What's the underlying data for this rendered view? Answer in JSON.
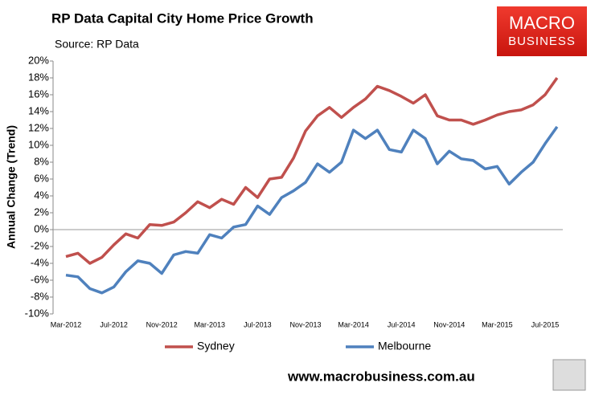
{
  "chart_data": {
    "type": "line",
    "title": "RP Data Capital City Home Price Growth",
    "subtitle": "Source: RP Data",
    "y_label": "Annual Change (Trend)",
    "categories": [
      "Mar-2012",
      null,
      null,
      null,
      "Jul-2012",
      null,
      null,
      null,
      "Nov-2012",
      null,
      null,
      null,
      "Mar-2013",
      null,
      null,
      null,
      "Jul-2013",
      null,
      null,
      null,
      "Nov-2013",
      null,
      null,
      null,
      "Mar-2014",
      null,
      null,
      null,
      "Jul-2014",
      null,
      null,
      null,
      "Nov-2014",
      null,
      null,
      null,
      "Mar-2015",
      null,
      null,
      null,
      "Jul-2015",
      null
    ],
    "series": [
      {
        "name": "Sydney",
        "color": "#c0504d",
        "values": [
          -3.2,
          -2.8,
          -4.0,
          -3.3,
          -1.8,
          -0.5,
          -1.0,
          0.6,
          0.5,
          0.9,
          2.0,
          3.3,
          2.6,
          3.6,
          3.0,
          5.0,
          3.8,
          6.0,
          6.2,
          8.5,
          11.7,
          13.5,
          14.5,
          13.3,
          14.5,
          15.5,
          17.0,
          16.5,
          15.8,
          15.0,
          16.0,
          13.5,
          13.0,
          13.0,
          12.5,
          13.0,
          13.6,
          14.0,
          14.2,
          14.8,
          16.0,
          18.0
        ]
      },
      {
        "name": "Melbourne",
        "color": "#4f81bd",
        "values": [
          -5.4,
          -5.6,
          -7.0,
          -7.5,
          -6.8,
          -5.0,
          -3.7,
          -4.0,
          -5.2,
          -3.0,
          -2.6,
          -2.8,
          -0.6,
          -1.0,
          0.3,
          0.6,
          2.8,
          1.8,
          3.8,
          4.6,
          5.6,
          7.8,
          6.8,
          8.0,
          11.8,
          10.8,
          11.8,
          9.5,
          9.2,
          11.8,
          10.8,
          7.8,
          9.3,
          8.4,
          8.2,
          7.2,
          7.5,
          5.4,
          6.8,
          8.0,
          10.2,
          12.2
        ]
      }
    ],
    "ylim": [
      -10,
      20
    ],
    "yticks": [
      {
        "value": -10,
        "label": "-10%"
      },
      {
        "value": -8,
        "label": "-8%"
      },
      {
        "value": -6,
        "label": "-6%"
      },
      {
        "value": -4,
        "label": "-4%"
      },
      {
        "value": -2,
        "label": "-2%"
      },
      {
        "value": 0,
        "label": "0%"
      },
      {
        "value": 2,
        "label": "2%"
      },
      {
        "value": 4,
        "label": "4%"
      },
      {
        "value": 6,
        "label": "6%"
      },
      {
        "value": 8,
        "label": "8%"
      },
      {
        "value": 10,
        "label": "10%"
      },
      {
        "value": 12,
        "label": "12%"
      },
      {
        "value": 14,
        "label": "14%"
      },
      {
        "value": 16,
        "label": "16%"
      },
      {
        "value": 18,
        "label": "18%"
      },
      {
        "value": 20,
        "label": "20%"
      }
    ],
    "grid": false,
    "legend": "bottom"
  },
  "branding": {
    "logo_top": "MACRO",
    "logo_bottom": "BUSINESS",
    "website": "www.macrobusiness.com.au"
  }
}
